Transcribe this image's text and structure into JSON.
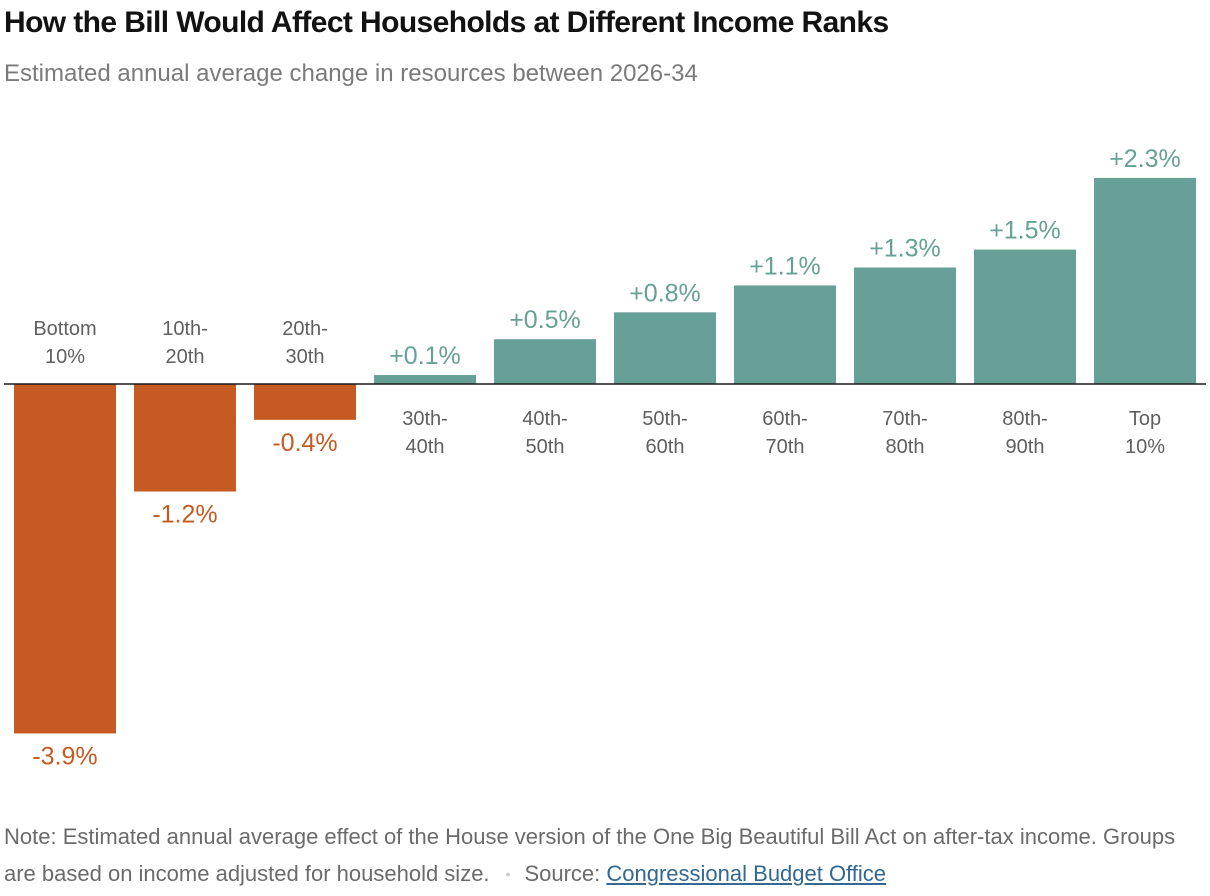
{
  "header": {
    "title": "How the Bill Would Affect Households at Different Income Ranks",
    "subtitle": "Estimated annual average change in resources between 2026-34"
  },
  "chart_data": {
    "type": "bar",
    "categories": [
      [
        "Bottom",
        "10%"
      ],
      [
        "10th-",
        "20th"
      ],
      [
        "20th-",
        "30th"
      ],
      [
        "30th-",
        "40th"
      ],
      [
        "40th-",
        "50th"
      ],
      [
        "50th-",
        "60th"
      ],
      [
        "60th-",
        "70th"
      ],
      [
        "70th-",
        "80th"
      ],
      [
        "80th-",
        "90th"
      ],
      [
        "Top",
        "10%"
      ]
    ],
    "values": [
      -3.9,
      -1.2,
      -0.4,
      0.1,
      0.5,
      0.8,
      1.1,
      1.3,
      1.5,
      2.3
    ],
    "value_labels": [
      "-3.9%",
      "-1.2%",
      "-0.4%",
      "+0.1%",
      "+0.5%",
      "+0.8%",
      "+1.1%",
      "+1.3%",
      "+1.5%",
      "+2.3%"
    ],
    "title": "",
    "xlabel": "",
    "ylabel": "",
    "ylim": [
      -3.9,
      2.3
    ],
    "grid": false,
    "colors": {
      "negative": "#c55a22",
      "positive": "#67a096",
      "baseline": "#1a1a1a"
    }
  },
  "footer": {
    "note": "Note: Estimated annual average effect of the House version of the One Big Beautiful Bill Act on after-tax income. Groups are based on income adjusted for household size.",
    "separator": "•",
    "source_prefix": "Source: ",
    "source_link": "Congressional Budget Office"
  }
}
